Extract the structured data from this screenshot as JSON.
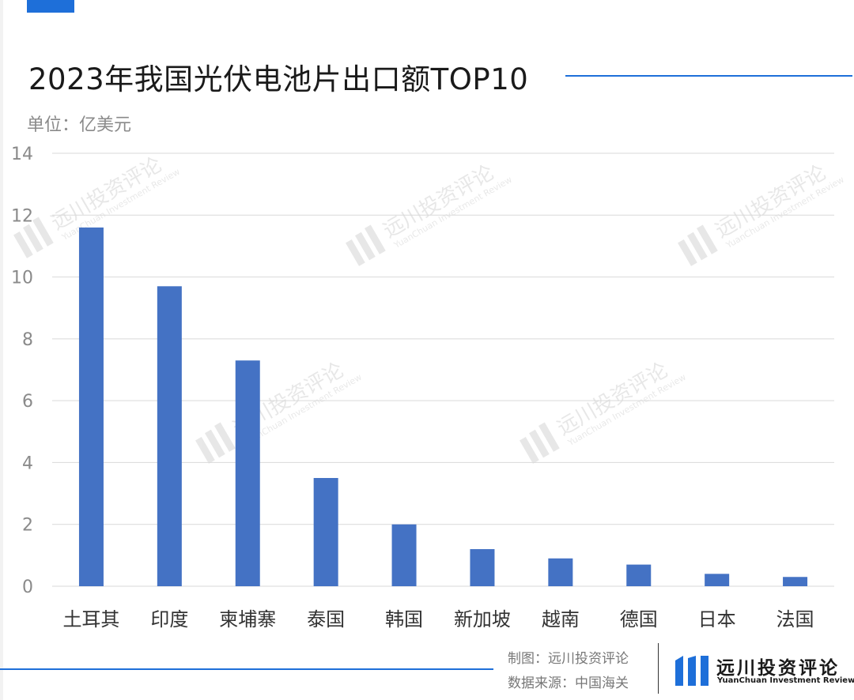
{
  "header": {
    "title": "2023年我国光伏电池片出口额TOP10",
    "unit": "单位：亿美元"
  },
  "chart_data": {
    "type": "bar",
    "categories": [
      "土耳其",
      "印度",
      "柬埔寨",
      "泰国",
      "韩国",
      "新加坡",
      "越南",
      "德国",
      "日本",
      "法国"
    ],
    "values": [
      11.6,
      9.7,
      7.3,
      3.5,
      2.0,
      1.2,
      0.9,
      0.7,
      0.4,
      0.3
    ],
    "ylim": [
      0,
      14
    ],
    "yticks": [
      0,
      2,
      4,
      6,
      8,
      10,
      12,
      14
    ],
    "grid": true,
    "bar_color": "#4472c4"
  },
  "watermark": {
    "brand": "远川投资评论",
    "brand_en": "YuanChuan Investment Review"
  },
  "footer": {
    "credit": "制图：远川投资评论",
    "source": "数据来源：中国海关",
    "brand_cn": "远川投资评论",
    "brand_en": "YuanChuan Investment Review"
  },
  "colors": {
    "accent": "#1e6fd9",
    "bar": "#4472c4",
    "grid": "#d9d9d9"
  }
}
